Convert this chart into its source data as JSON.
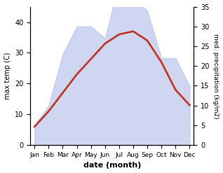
{
  "months": [
    "Jan",
    "Feb",
    "Mar",
    "Apr",
    "May",
    "Jun",
    "Jul",
    "Aug",
    "Sep",
    "Oct",
    "Nov",
    "Dec"
  ],
  "month_indices": [
    0,
    1,
    2,
    3,
    4,
    5,
    6,
    7,
    8,
    9,
    10,
    11
  ],
  "temperature": [
    6,
    11,
    17,
    23,
    28,
    33,
    36,
    37,
    34,
    27,
    18,
    13
  ],
  "precipitation": [
    5,
    10,
    23,
    30,
    30,
    27,
    41,
    37,
    34,
    22,
    22,
    15
  ],
  "temp_color": "#c0392b",
  "precip_fill_color": "#b0bce8",
  "left_ylim": [
    0,
    45
  ],
  "right_ylim": [
    0,
    35
  ],
  "left_yticks": [
    0,
    10,
    20,
    30,
    40
  ],
  "right_yticks": [
    0,
    5,
    10,
    15,
    20,
    25,
    30,
    35
  ],
  "xlabel": "date (month)",
  "ylabel_left": "max temp (C)",
  "ylabel_right": "med. precipitation (kg/m2)",
  "line_width": 2.0,
  "fill_alpha": 0.6,
  "background_color": "#ffffff"
}
